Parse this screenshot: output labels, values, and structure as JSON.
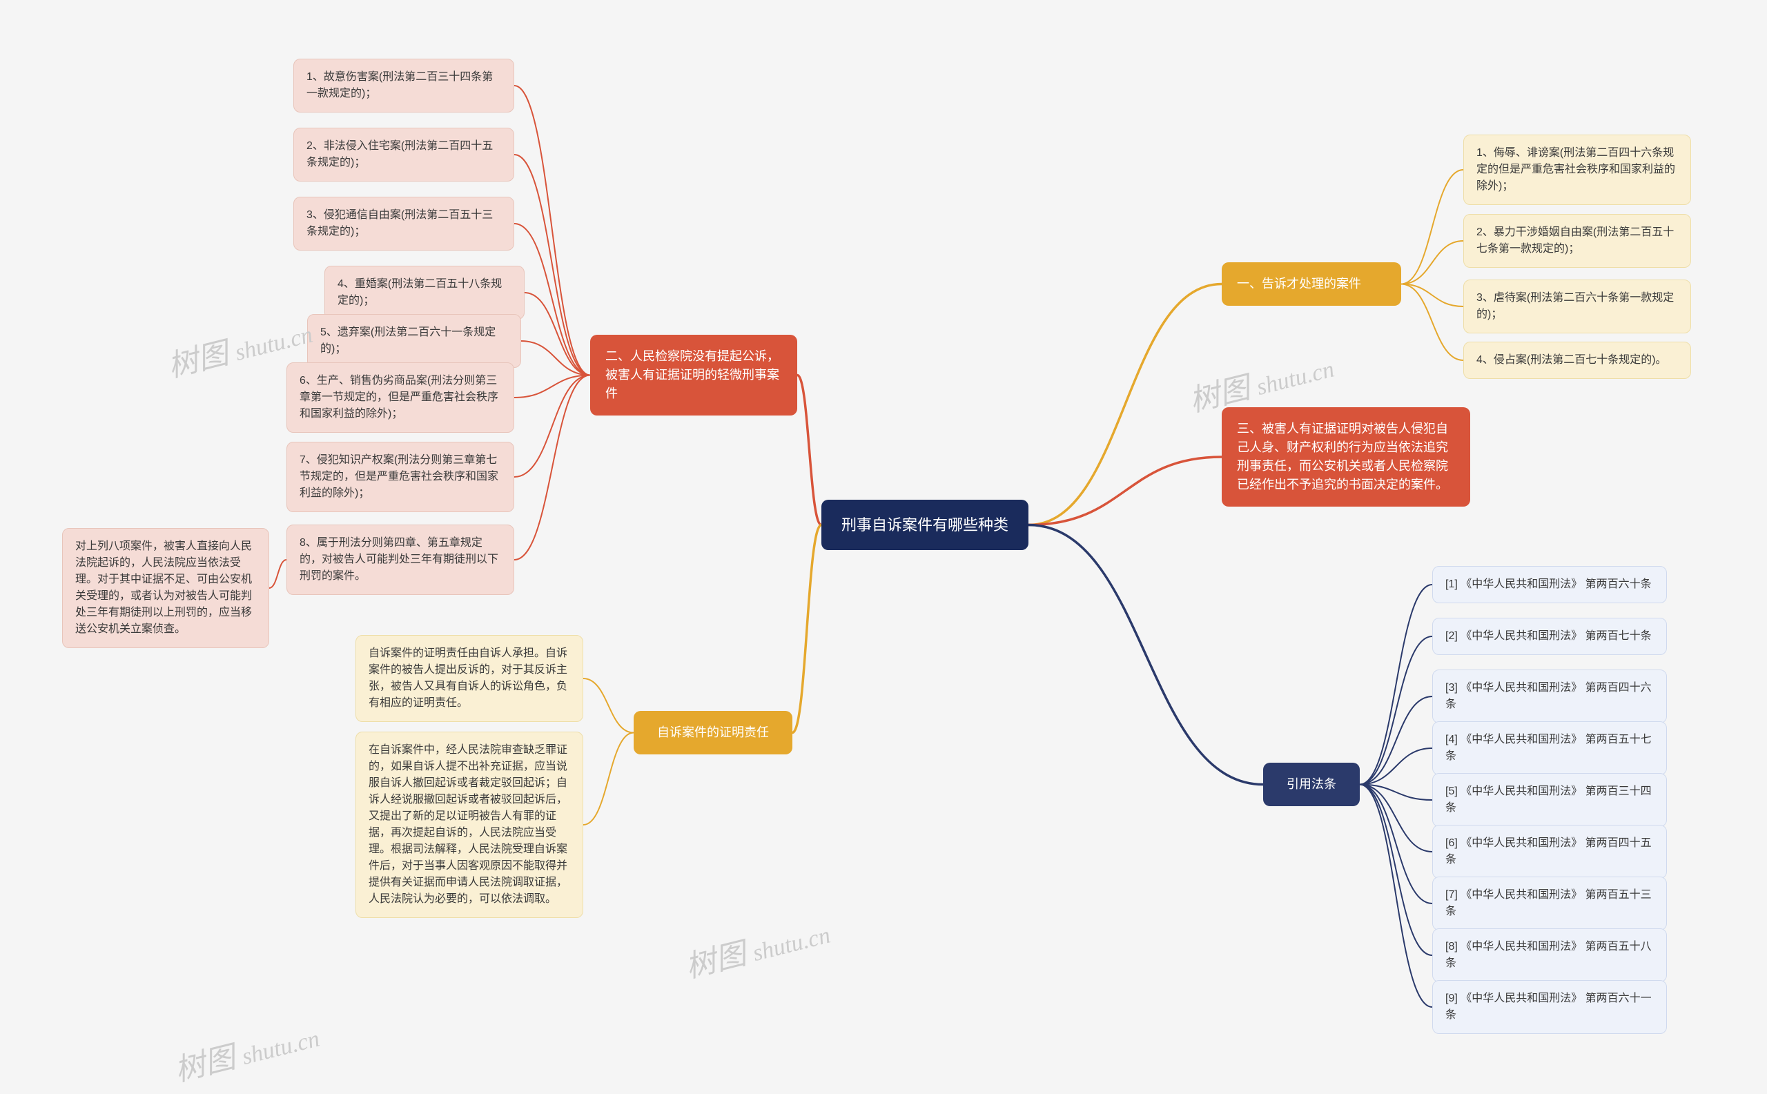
{
  "central": "刑事自诉案件有哪些种类",
  "b1": {
    "title": "一、告诉才处理的案件",
    "L": [
      "1、侮辱、诽谤案(刑法第二百四十六条规定的但是严重危害社会秩序和国家利益的除外)；",
      "2、暴力干涉婚姻自由案(刑法第二百五十七条第一款规定的)；",
      "3、虐待案(刑法第二百六十条第一款规定的)；",
      "4、侵占案(刑法第二百七十条规定的)。"
    ]
  },
  "b2": {
    "title": "二、人民检察院没有提起公诉，被害人有证据证明的轻微刑事案件",
    "L": [
      "1、故意伤害案(刑法第二百三十四条第一款规定的)；",
      "2、非法侵入住宅案(刑法第二百四十五条规定的)；",
      "3、侵犯通信自由案(刑法第二百五十三条规定的)；",
      "4、重婚案(刑法第二百五十八条规定的)；",
      "5、遗弃案(刑法第二百六十一条规定的)；",
      "6、生产、销售伪劣商品案(刑法分则第三章第一节规定的，但是严重危害社会秩序和国家利益的除外)；",
      "7、侵犯知识产权案(刑法分则第三章第七节规定的，但是严重危害社会秩序和国家利益的除外)；",
      "8、属于刑法分则第四章、第五章规定的，对被告人可能判处三年有期徒刑以下刑罚的案件。"
    ],
    "extra": "对上列八项案件，被害人直接向人民法院起诉的，人民法院应当依法受理。对于其中证据不足、可由公安机关受理的，或者认为对被告人可能判处三年有期徒刑以上刑罚的，应当移送公安机关立案侦查。"
  },
  "b3": {
    "title": "三、被害人有证据证明对被告人侵犯自己人身、财产权利的行为应当依法追究刑事责任，而公安机关或者人民检察院已经作出不予追究的书面决定的案件。"
  },
  "b4": {
    "title": "自诉案件的证明责任",
    "L": [
      "自诉案件的证明责任由自诉人承担。自诉案件的被告人提出反诉的，对于其反诉主张，被告人又具有自诉人的诉讼角色，负有相应的证明责任。",
      "在自诉案件中，经人民法院审查缺乏罪证的，如果自诉人提不出补充证据，应当说服自诉人撤回起诉或者裁定驳回起诉；自诉人经说服撤回起诉或者被驳回起诉后，又提出了新的足以证明被告人有罪的证据，再次提起自诉的，人民法院应当受理。根据司法解释，人民法院受理自诉案件后，对于当事人因客观原因不能取得并提供有关证据而申请人民法院调取证据，人民法院认为必要的，可以依法调取。"
    ]
  },
  "b5": {
    "title": "引用法条",
    "L": [
      "[1] 《中华人民共和国刑法》 第两百六十条",
      "[2] 《中华人民共和国刑法》 第两百七十条",
      "[3] 《中华人民共和国刑法》 第两百四十六条",
      "[4] 《中华人民共和国刑法》 第两百五十七条",
      "[5] 《中华人民共和国刑法》 第两百三十四条",
      "[6] 《中华人民共和国刑法》 第两百四十五条",
      "[7] 《中华人民共和国刑法》 第两百五十三条",
      "[8] 《中华人民共和国刑法》 第两百五十八条",
      "[9] 《中华人民共和国刑法》 第两百六十一条"
    ]
  },
  "wm": "树图 shutu.cn"
}
